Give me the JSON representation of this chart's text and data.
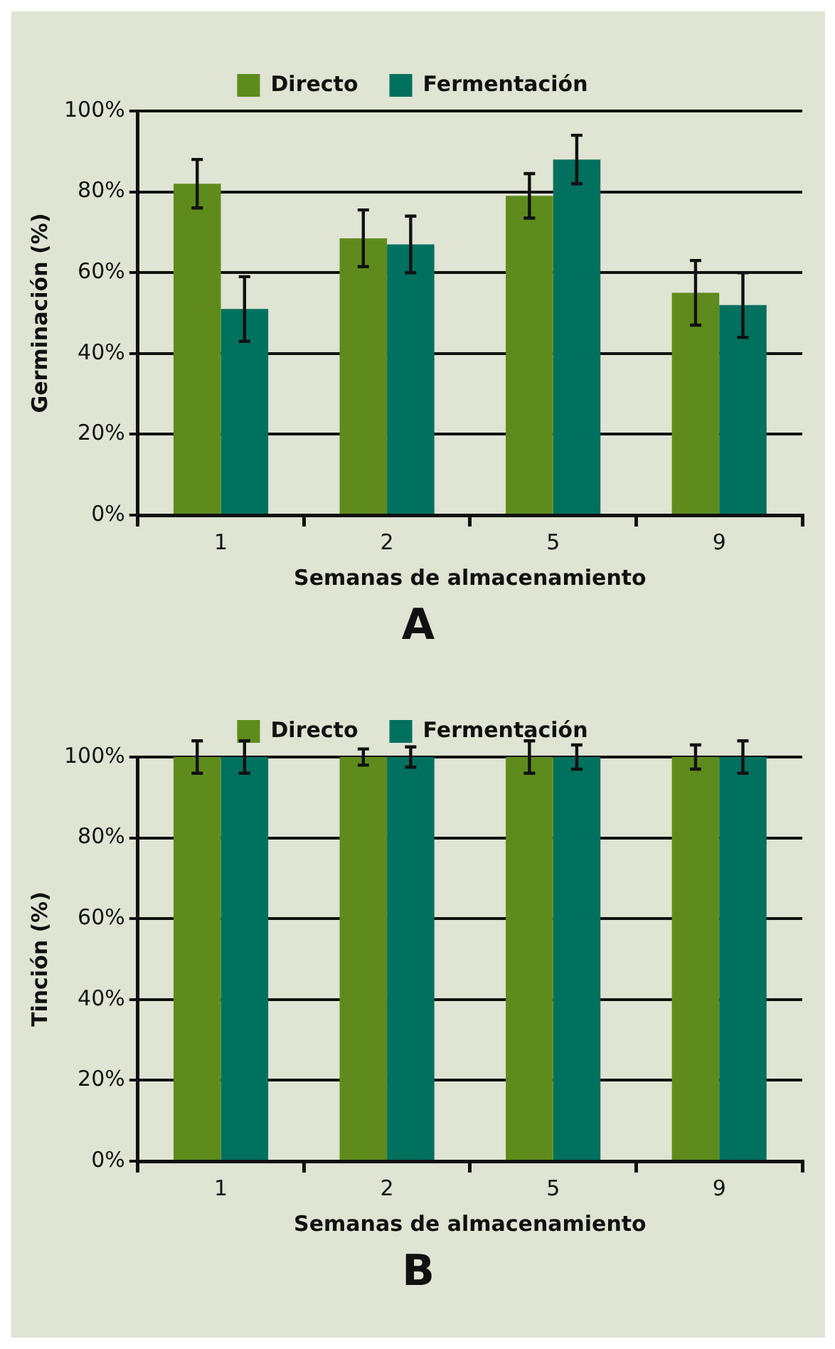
{
  "chart_data": [
    {
      "type": "bar",
      "xlabel": "Semanas de almacenamiento",
      "ylabel": "Germinación (%)",
      "categories": [
        "1",
        "2",
        "5",
        "9"
      ],
      "series": [
        {
          "name": "Directo",
          "color": "#5e8c1c",
          "values": [
            82,
            68.5,
            79,
            55
          ],
          "errors": [
            6,
            7,
            5.5,
            8
          ]
        },
        {
          "name": "Fermentación",
          "color": "#00705f",
          "values": [
            51,
            67,
            88,
            52
          ],
          "errors": [
            8,
            7,
            6,
            8
          ]
        }
      ],
      "ylim": [
        0,
        100
      ],
      "yticks": [
        {
          "value": 0,
          "label": "0%"
        },
        {
          "value": 20,
          "label": "20%"
        },
        {
          "value": 40,
          "label": "40%"
        },
        {
          "value": 60,
          "label": "60%"
        },
        {
          "value": 80,
          "label": "80%"
        },
        {
          "value": 100,
          "label": "100%"
        }
      ],
      "grid": "y",
      "legend": "top",
      "annotations": [
        "A"
      ]
    },
    {
      "type": "bar",
      "ylabel": "Tinción (%)",
      "xlabel": "Semanas de almacenamiento",
      "categories": [
        "1",
        "2",
        "5",
        "9"
      ],
      "series": [
        {
          "name": "Directo",
          "color": "#5e8c1c",
          "values": [
            100,
            100,
            100,
            100
          ],
          "errors": [
            4,
            2,
            4,
            3
          ]
        },
        {
          "name": "Fermentación",
          "color": "#00705f",
          "values": [
            100,
            100,
            100,
            100
          ],
          "errors": [
            4,
            2.5,
            3,
            4
          ]
        }
      ],
      "ylim": [
        0,
        100
      ],
      "yticks": [
        {
          "value": 0,
          "label": "0%"
        },
        {
          "value": 20,
          "label": "20%"
        },
        {
          "value": 40,
          "label": "40%"
        },
        {
          "value": 60,
          "label": "60%"
        },
        {
          "value": 80,
          "label": "80%"
        },
        {
          "value": 100,
          "label": "100%"
        }
      ],
      "grid": "y",
      "legend": "top",
      "annotations": [
        "B"
      ]
    }
  ]
}
